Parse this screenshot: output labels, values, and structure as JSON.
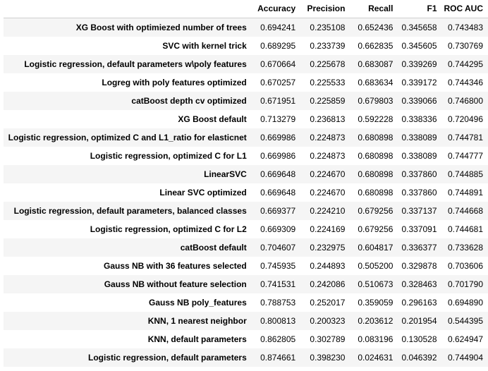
{
  "table": {
    "columns": [
      "Accuracy",
      "Precision",
      "Recall",
      "F1",
      "ROC AUC"
    ],
    "rows": [
      {
        "name": "XG Boost with optimiezed number of trees",
        "values": [
          "0.694241",
          "0.235108",
          "0.652436",
          "0.345658",
          "0.743483"
        ]
      },
      {
        "name": "SVC with kernel trick",
        "values": [
          "0.689295",
          "0.233739",
          "0.662835",
          "0.345605",
          "0.730769"
        ]
      },
      {
        "name": "Logistic regression, default parameters w\\poly features",
        "values": [
          "0.670664",
          "0.225678",
          "0.683087",
          "0.339269",
          "0.744295"
        ]
      },
      {
        "name": "Logreg with poly features optimized",
        "values": [
          "0.670257",
          "0.225533",
          "0.683634",
          "0.339172",
          "0.744346"
        ]
      },
      {
        "name": "catBoost depth cv optimized",
        "values": [
          "0.671951",
          "0.225859",
          "0.679803",
          "0.339066",
          "0.746800"
        ]
      },
      {
        "name": "XG Boost default",
        "values": [
          "0.713279",
          "0.236813",
          "0.592228",
          "0.338336",
          "0.720496"
        ]
      },
      {
        "name": "Logistic regression, optimized C and L1_ratio for elasticnet",
        "values": [
          "0.669986",
          "0.224873",
          "0.680898",
          "0.338089",
          "0.744781"
        ]
      },
      {
        "name": "Logistic regression, optimized C for L1",
        "values": [
          "0.669986",
          "0.224873",
          "0.680898",
          "0.338089",
          "0.744777"
        ]
      },
      {
        "name": "LinearSVC",
        "values": [
          "0.669648",
          "0.224670",
          "0.680898",
          "0.337860",
          "0.744885"
        ]
      },
      {
        "name": "Linear SVC optimized",
        "values": [
          "0.669648",
          "0.224670",
          "0.680898",
          "0.337860",
          "0.744891"
        ]
      },
      {
        "name": "Logistic regression, default parameters, balanced classes",
        "values": [
          "0.669377",
          "0.224210",
          "0.679256",
          "0.337137",
          "0.744668"
        ]
      },
      {
        "name": "Logistic regression, optimized C for L2",
        "values": [
          "0.669309",
          "0.224169",
          "0.679256",
          "0.337091",
          "0.744681"
        ]
      },
      {
        "name": "catBoost default",
        "values": [
          "0.704607",
          "0.232975",
          "0.604817",
          "0.336377",
          "0.733628"
        ]
      },
      {
        "name": "Gauss NB with 36 features selected",
        "values": [
          "0.745935",
          "0.244893",
          "0.505200",
          "0.329878",
          "0.703606"
        ]
      },
      {
        "name": "Gauss NB without feature selection",
        "values": [
          "0.741531",
          "0.242086",
          "0.510673",
          "0.328463",
          "0.701790"
        ]
      },
      {
        "name": "Gauss NB poly_features",
        "values": [
          "0.788753",
          "0.252017",
          "0.359059",
          "0.296163",
          "0.694890"
        ]
      },
      {
        "name": "KNN, 1 nearest neighbor",
        "values": [
          "0.800813",
          "0.200323",
          "0.203612",
          "0.201954",
          "0.544395"
        ]
      },
      {
        "name": "KNN, default parameters",
        "values": [
          "0.862805",
          "0.302789",
          "0.083196",
          "0.130528",
          "0.624947"
        ]
      },
      {
        "name": "Logistic regression, default parameters",
        "values": [
          "0.874661",
          "0.398230",
          "0.024631",
          "0.046392",
          "0.744904"
        ]
      }
    ]
  }
}
